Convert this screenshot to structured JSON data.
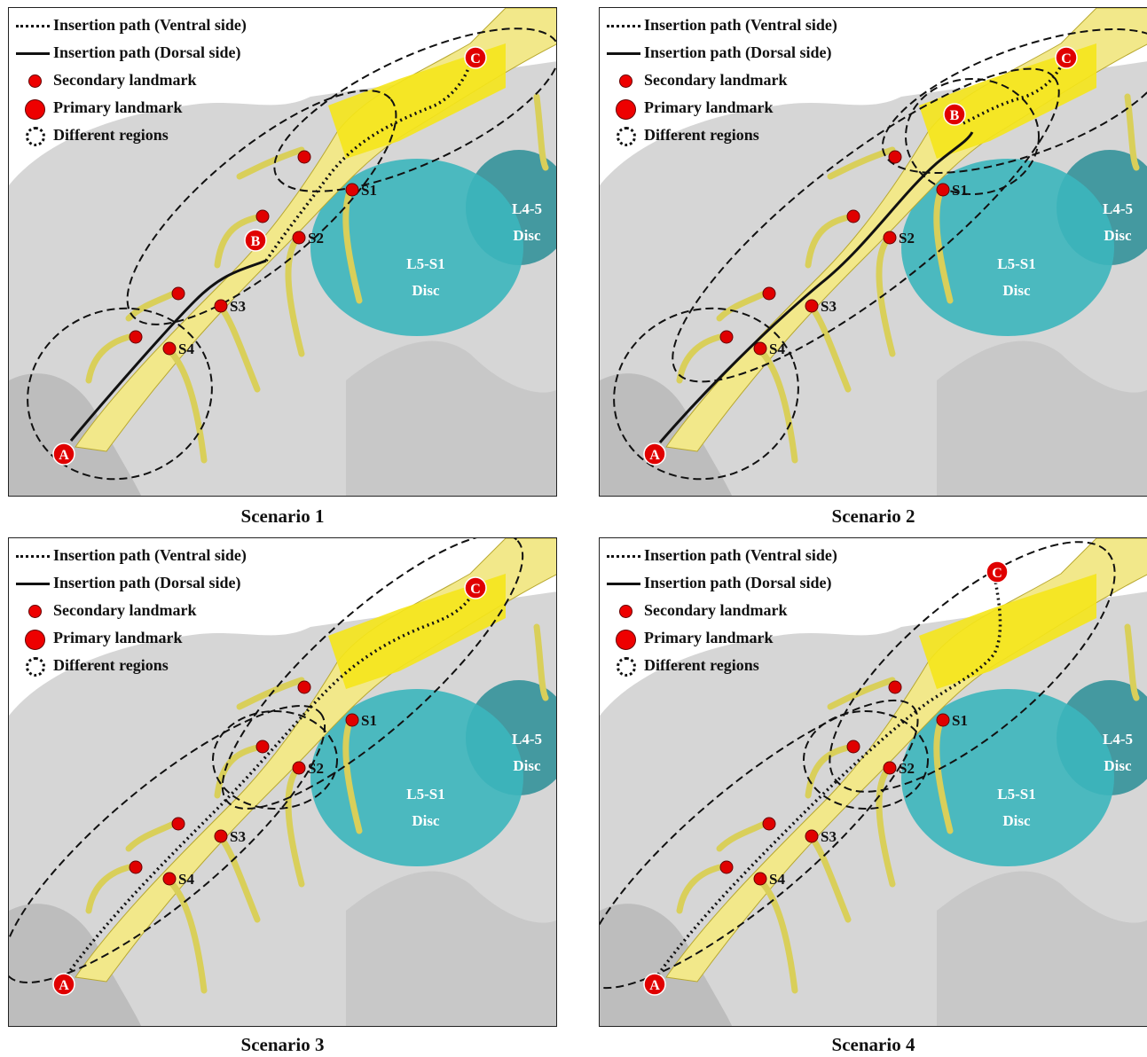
{
  "legend": {
    "ventral": "Insertion path (Ventral side)",
    "dorsal": "Insertion path (Dorsal side)",
    "secondary": "Secondary landmark",
    "primary": "Primary landmark",
    "regions": "Different regions"
  },
  "labels": {
    "A": "A",
    "B": "B",
    "C": "C",
    "S1": "S1",
    "S2": "S2",
    "S3": "S3",
    "S4": "S4",
    "disc_l45_line1": "L4-5",
    "disc_l45_line2": "Disc",
    "disc_l5s1_line1": "L5-S1",
    "disc_l5s1_line2": "Disc"
  },
  "colors": {
    "bone": "#d6d6d6",
    "nerve": "#f2e88a",
    "nerve_highlight": "#f5e61a",
    "disc": "#3cb6bd",
    "disc_dark": "#2a8e96",
    "landmark": "#e00000"
  },
  "scenarios": [
    {
      "caption": "Scenario 1",
      "path_type": "dorsal then ventral",
      "has_B": true
    },
    {
      "caption": "Scenario 2",
      "path_type": "dorsal then ventral",
      "has_B": true
    },
    {
      "caption": "Scenario 3",
      "path_type": "ventral",
      "has_B": false
    },
    {
      "caption": "Scenario 4",
      "path_type": "ventral",
      "has_B": false
    }
  ]
}
